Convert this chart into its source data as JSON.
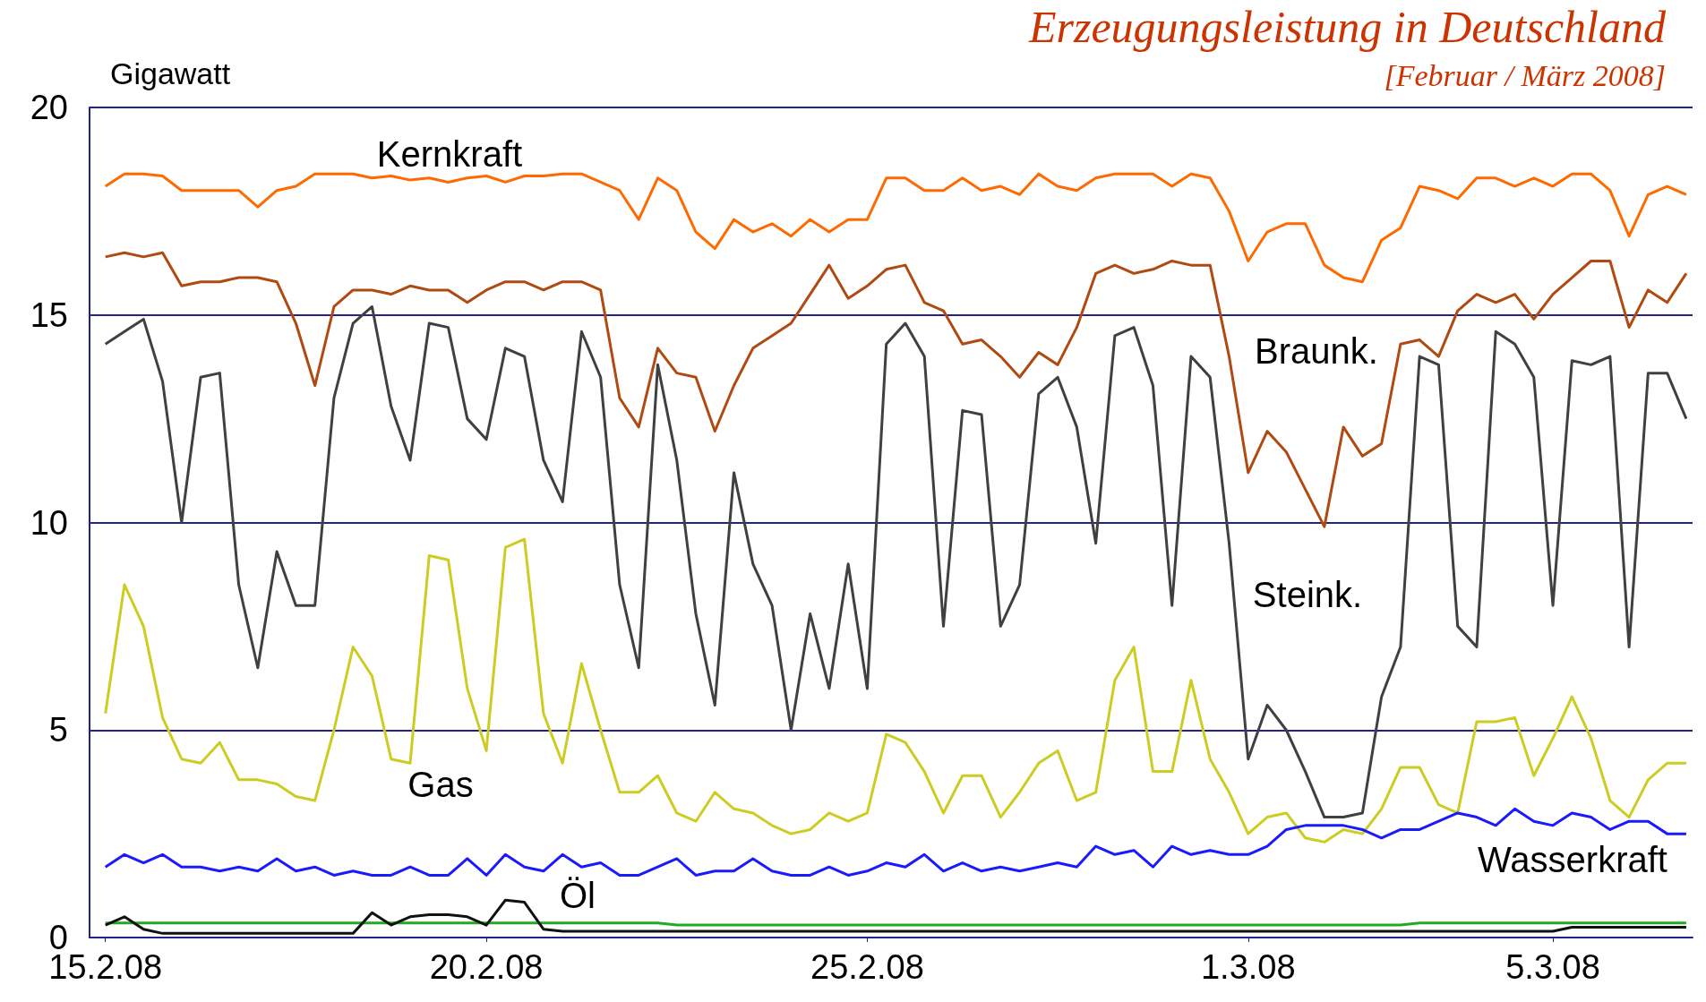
{
  "chart_data": {
    "type": "line",
    "title": "Erzeugungsleistung in Deutschland",
    "subtitle": "[Februar / März 2008]",
    "ylabel": "Gigawatt",
    "x": [
      "2008-02-15T00:00",
      "2008-02-15T06:00",
      "2008-02-15T12:00",
      "2008-02-15T18:00",
      "2008-02-16T00:00",
      "2008-02-16T06:00",
      "2008-02-16T12:00",
      "2008-02-16T18:00",
      "2008-02-17T00:00",
      "2008-02-17T06:00",
      "2008-02-17T12:00",
      "2008-02-17T18:00",
      "2008-02-18T00:00",
      "2008-02-18T06:00",
      "2008-02-18T12:00",
      "2008-02-18T18:00",
      "2008-02-19T00:00",
      "2008-02-19T06:00",
      "2008-02-19T12:00",
      "2008-02-19T18:00",
      "2008-02-20T00:00",
      "2008-02-20T06:00",
      "2008-02-20T12:00",
      "2008-02-20T18:00",
      "2008-02-21T00:00",
      "2008-02-21T06:00",
      "2008-02-21T12:00",
      "2008-02-21T18:00",
      "2008-02-22T00:00",
      "2008-02-22T06:00",
      "2008-02-22T12:00",
      "2008-02-22T18:00",
      "2008-02-23T00:00",
      "2008-02-23T06:00",
      "2008-02-23T12:00",
      "2008-02-23T18:00",
      "2008-02-24T00:00",
      "2008-02-24T06:00",
      "2008-02-24T12:00",
      "2008-02-24T18:00",
      "2008-02-25T00:00",
      "2008-02-25T06:00",
      "2008-02-25T12:00",
      "2008-02-25T18:00",
      "2008-02-26T00:00",
      "2008-02-26T06:00",
      "2008-02-26T12:00",
      "2008-02-26T18:00",
      "2008-02-27T00:00",
      "2008-02-27T06:00",
      "2008-02-27T12:00",
      "2008-02-27T18:00",
      "2008-02-28T00:00",
      "2008-02-28T06:00",
      "2008-02-28T12:00",
      "2008-02-28T18:00",
      "2008-02-29T00:00",
      "2008-02-29T06:00",
      "2008-02-29T12:00",
      "2008-02-29T18:00",
      "2008-03-01T00:00",
      "2008-03-01T06:00",
      "2008-03-01T12:00",
      "2008-03-01T18:00",
      "2008-03-02T00:00",
      "2008-03-02T06:00",
      "2008-03-02T12:00",
      "2008-03-02T18:00",
      "2008-03-03T00:00",
      "2008-03-03T06:00",
      "2008-03-03T12:00",
      "2008-03-03T18:00",
      "2008-03-04T00:00",
      "2008-03-04T06:00",
      "2008-03-04T12:00",
      "2008-03-04T18:00",
      "2008-03-05T00:00",
      "2008-03-05T06:00",
      "2008-03-05T12:00",
      "2008-03-05T18:00",
      "2008-03-06T00:00",
      "2008-03-06T06:00",
      "2008-03-06T12:00",
      "2008-03-06T18:00"
    ],
    "series": [
      {
        "color": "#ff6a00",
        "values": [
          18.1,
          18.4,
          18.4,
          18.35,
          18.0,
          18.0,
          18.0,
          18.0,
          17.6,
          18.0,
          18.1,
          18.4,
          18.4,
          18.4,
          18.3,
          18.35,
          18.25,
          18.3,
          18.2,
          18.3,
          18.35,
          18.2,
          18.35,
          18.35,
          18.4,
          18.4,
          18.2,
          18.0,
          17.3,
          18.3,
          18.0,
          17.0,
          16.6,
          17.3,
          17.0,
          17.2,
          16.9,
          17.3,
          17.0,
          17.3,
          17.3,
          18.3,
          18.3,
          18.0,
          18.0,
          18.3,
          18.0,
          18.1,
          17.9,
          18.4,
          18.1,
          18.0,
          18.3,
          18.4,
          18.4,
          18.4,
          18.1,
          18.4,
          18.3,
          17.5,
          16.3,
          17.0,
          17.2,
          17.2,
          16.2,
          15.9,
          15.8,
          16.8,
          17.1,
          18.1,
          18.0,
          17.8,
          18.3,
          18.3,
          18.1,
          18.3,
          18.1,
          18.4,
          18.4,
          18.0,
          16.9,
          17.9,
          18.1,
          17.9
        ]
      },
      {
        "color": "#b04a10",
        "values": [
          16.4,
          16.5,
          16.4,
          16.5,
          15.7,
          15.8,
          15.8,
          15.9,
          15.9,
          15.8,
          14.8,
          13.3,
          15.2,
          15.6,
          15.6,
          15.5,
          15.7,
          15.6,
          15.6,
          15.3,
          15.6,
          15.8,
          15.8,
          15.6,
          15.8,
          15.8,
          15.6,
          13.0,
          12.3,
          14.2,
          13.6,
          13.5,
          12.2,
          13.3,
          14.2,
          14.5,
          14.8,
          15.5,
          16.2,
          15.4,
          15.7,
          16.1,
          16.2,
          15.3,
          15.1,
          14.3,
          14.4,
          14.0,
          13.5,
          14.1,
          13.8,
          14.7,
          16.0,
          16.2,
          16.0,
          16.1,
          16.3,
          16.2,
          16.2,
          14.0,
          11.2,
          12.2,
          11.7,
          10.8,
          9.9,
          12.3,
          11.6,
          11.9,
          14.3,
          14.4,
          14.0,
          15.1,
          15.5,
          15.3,
          15.5,
          14.9,
          15.5,
          15.9,
          16.3,
          16.3,
          14.7,
          15.6,
          15.3,
          16.0
        ]
      },
      {
        "color": "#404040",
        "values": [
          14.3,
          14.6,
          14.9,
          13.4,
          10.0,
          13.5,
          13.6,
          8.5,
          6.5,
          9.3,
          8.0,
          8.0,
          13.0,
          14.8,
          15.2,
          12.8,
          11.5,
          14.8,
          14.7,
          12.5,
          12.0,
          14.2,
          14.0,
          11.5,
          10.5,
          14.6,
          13.5,
          8.5,
          6.5,
          13.8,
          11.5,
          7.8,
          5.6,
          11.2,
          9.0,
          8.0,
          5.0,
          7.8,
          6.0,
          9.0,
          6.0,
          14.3,
          14.8,
          14.0,
          7.5,
          12.7,
          12.6,
          7.5,
          8.5,
          13.1,
          13.5,
          12.3,
          9.5,
          14.5,
          14.7,
          13.3,
          8.0,
          14.0,
          13.5,
          9.5,
          4.3,
          5.6,
          5.0,
          4.0,
          2.9,
          2.9,
          3.0,
          5.8,
          7.0,
          14.0,
          13.8,
          7.5,
          7.0,
          14.6,
          14.3,
          13.5,
          8.0,
          13.9,
          13.8,
          14.0,
          7.0,
          13.6,
          13.6,
          12.5
        ]
      },
      {
        "color": "#cccc22",
        "values": [
          5.4,
          8.5,
          7.5,
          5.3,
          4.3,
          4.2,
          4.7,
          3.8,
          3.8,
          3.7,
          3.4,
          3.3,
          5.0,
          7.0,
          6.3,
          4.3,
          4.2,
          9.2,
          9.1,
          6.0,
          4.5,
          9.4,
          9.6,
          5.4,
          4.2,
          6.6,
          5.0,
          3.5,
          3.5,
          3.9,
          3.0,
          2.8,
          3.5,
          3.1,
          3.0,
          2.7,
          2.5,
          2.6,
          3.0,
          2.8,
          3.0,
          4.9,
          4.7,
          4.0,
          3.0,
          3.9,
          3.9,
          2.9,
          3.5,
          4.2,
          4.5,
          3.3,
          3.5,
          6.2,
          7.0,
          4.0,
          4.0,
          6.2,
          4.3,
          3.5,
          2.5,
          2.9,
          3.0,
          2.4,
          2.3,
          2.6,
          2.5,
          3.1,
          4.1,
          4.1,
          3.2,
          3.0,
          5.2,
          5.2,
          5.3,
          3.9,
          4.8,
          5.8,
          4.8,
          3.3,
          2.9,
          3.8,
          4.2,
          4.2
        ]
      },
      {
        "color": "#1a1aff",
        "values": [
          1.7,
          2.0,
          1.8,
          2.0,
          1.7,
          1.7,
          1.6,
          1.7,
          1.6,
          1.9,
          1.6,
          1.7,
          1.5,
          1.6,
          1.5,
          1.5,
          1.7,
          1.5,
          1.5,
          1.9,
          1.5,
          2.0,
          1.7,
          1.6,
          2.0,
          1.7,
          1.8,
          1.5,
          1.5,
          1.7,
          1.9,
          1.5,
          1.6,
          1.6,
          1.9,
          1.6,
          1.5,
          1.5,
          1.7,
          1.5,
          1.6,
          1.8,
          1.7,
          2.0,
          1.6,
          1.8,
          1.6,
          1.7,
          1.6,
          1.7,
          1.8,
          1.7,
          2.2,
          2.0,
          2.1,
          1.7,
          2.2,
          2.0,
          2.1,
          2.0,
          2.0,
          2.2,
          2.6,
          2.7,
          2.7,
          2.7,
          2.6,
          2.4,
          2.6,
          2.6,
          2.8,
          3.0,
          2.9,
          2.7,
          3.1,
          2.8,
          2.7,
          3.0,
          2.9,
          2.6,
          2.8,
          2.8,
          2.5,
          2.5
        ]
      },
      {
        "color": "#22aa22",
        "values": [
          0.35,
          0.35,
          0.35,
          0.35,
          0.35,
          0.35,
          0.35,
          0.35,
          0.35,
          0.35,
          0.35,
          0.35,
          0.35,
          0.35,
          0.35,
          0.35,
          0.35,
          0.35,
          0.35,
          0.35,
          0.35,
          0.35,
          0.35,
          0.35,
          0.35,
          0.35,
          0.35,
          0.35,
          0.35,
          0.35,
          0.3,
          0.3,
          0.3,
          0.3,
          0.3,
          0.3,
          0.3,
          0.3,
          0.3,
          0.3,
          0.3,
          0.3,
          0.3,
          0.3,
          0.3,
          0.3,
          0.3,
          0.3,
          0.3,
          0.3,
          0.3,
          0.3,
          0.3,
          0.3,
          0.3,
          0.3,
          0.3,
          0.3,
          0.3,
          0.3,
          0.3,
          0.3,
          0.3,
          0.3,
          0.3,
          0.3,
          0.3,
          0.3,
          0.3,
          0.35,
          0.35,
          0.35,
          0.35,
          0.35,
          0.35,
          0.35,
          0.35,
          0.35,
          0.35,
          0.35,
          0.35,
          0.35,
          0.35,
          0.35
        ]
      },
      {
        "color": "#111111",
        "values": [
          0.3,
          0.5,
          0.2,
          0.1,
          0.1,
          0.1,
          0.1,
          0.1,
          0.1,
          0.1,
          0.1,
          0.1,
          0.1,
          0.1,
          0.6,
          0.3,
          0.5,
          0.55,
          0.55,
          0.5,
          0.3,
          0.9,
          0.85,
          0.2,
          0.15,
          0.15,
          0.15,
          0.15,
          0.15,
          0.15,
          0.15,
          0.15,
          0.15,
          0.15,
          0.15,
          0.15,
          0.15,
          0.15,
          0.15,
          0.15,
          0.15,
          0.15,
          0.15,
          0.15,
          0.15,
          0.15,
          0.15,
          0.15,
          0.15,
          0.15,
          0.15,
          0.15,
          0.15,
          0.15,
          0.15,
          0.15,
          0.15,
          0.15,
          0.15,
          0.15,
          0.15,
          0.15,
          0.15,
          0.15,
          0.15,
          0.15,
          0.15,
          0.15,
          0.15,
          0.15,
          0.15,
          0.15,
          0.15,
          0.15,
          0.15,
          0.15,
          0.15,
          0.25,
          0.25,
          0.25,
          0.25,
          0.25,
          0.25,
          0.25
        ]
      }
    ],
    "annotations": [
      "Kernkraft",
      "Braunk.",
      "Steink.",
      "Gas",
      "Wasserkraft",
      "Öl"
    ],
    "xlim": [
      "2008-02-14T19:00",
      "2008-03-06T20:00"
    ],
    "xticks": [
      {
        "value": "2008-02-15",
        "label": "15.2.08"
      },
      {
        "value": "2008-02-20",
        "label": "20.2.08"
      },
      {
        "value": "2008-02-25",
        "label": "25.2.08"
      },
      {
        "value": "2008-03-01",
        "label": "1.3.08"
      },
      {
        "value": "2008-03-05",
        "label": "5.3.08"
      }
    ],
    "ylim": [
      0,
      20
    ],
    "yticks": [
      0,
      5,
      10,
      15,
      20
    ],
    "grid": "y",
    "marker": "none"
  }
}
